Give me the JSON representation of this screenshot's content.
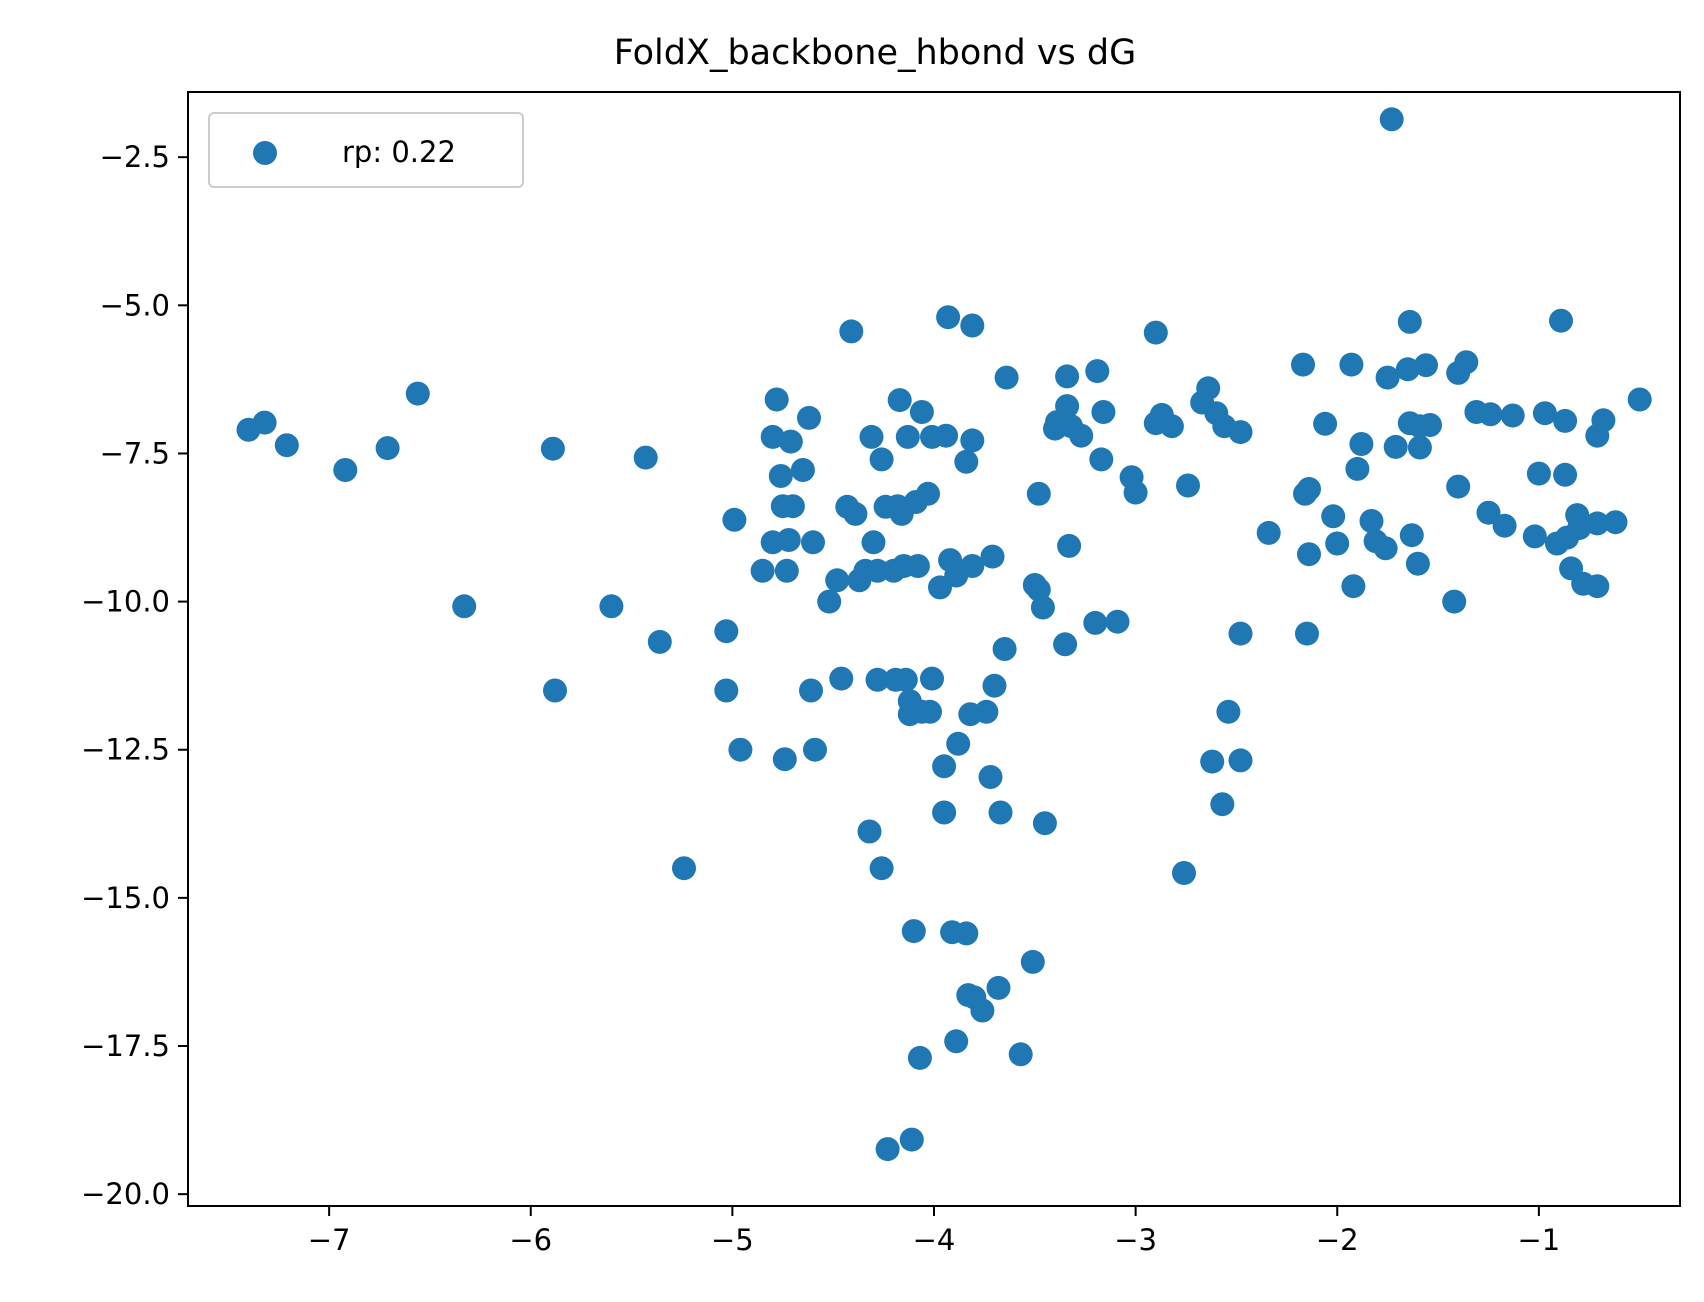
{
  "chart_data": {
    "type": "scatter",
    "title": "FoldX_backbone_hbond vs dG",
    "xlabel": "",
    "ylabel": "",
    "xlim": [
      -7.7,
      -0.3
    ],
    "ylim": [
      -20.2,
      -1.4
    ],
    "x_ticks": [
      -7,
      -6,
      -5,
      -4,
      -3,
      -2,
      -1
    ],
    "y_ticks": [
      -2.5,
      -5.0,
      -7.5,
      -10.0,
      -12.5,
      -15.0,
      -17.5,
      -20.0
    ],
    "x_tick_labels": [
      "−7",
      "−6",
      "−5",
      "−4",
      "−3",
      "−2",
      "−1"
    ],
    "y_tick_labels": [
      "−2.5",
      "−5.0",
      "−7.5",
      "−10.0",
      "−12.5",
      "−15.0",
      "−17.5",
      "−20.0"
    ],
    "grid": false,
    "legend": {
      "placement": "top-left",
      "entries": [
        "rp: 0.22"
      ]
    },
    "color": "#1f77b4",
    "series": [
      {
        "name": "rp: 0.22",
        "points": [
          [
            -7.4,
            -7.1
          ],
          [
            -7.32,
            -6.98
          ],
          [
            -7.21,
            -7.36
          ],
          [
            -6.92,
            -7.78
          ],
          [
            -6.71,
            -7.41
          ],
          [
            -6.56,
            -6.49
          ],
          [
            -6.33,
            -10.08
          ],
          [
            -5.89,
            -7.42
          ],
          [
            -5.88,
            -11.5
          ],
          [
            -5.6,
            -10.08
          ],
          [
            -5.43,
            -7.57
          ],
          [
            -5.36,
            -10.68
          ],
          [
            -5.24,
            -14.5
          ],
          [
            -5.03,
            -10.5
          ],
          [
            -5.03,
            -11.5
          ],
          [
            -4.99,
            -8.62
          ],
          [
            -4.96,
            -12.5
          ],
          [
            -4.85,
            -9.48
          ],
          [
            -4.8,
            -7.22
          ],
          [
            -4.8,
            -9.0
          ],
          [
            -4.78,
            -6.59
          ],
          [
            -4.76,
            -7.88
          ],
          [
            -4.75,
            -8.39
          ],
          [
            -4.74,
            -12.66
          ],
          [
            -4.73,
            -9.48
          ],
          [
            -4.72,
            -8.96
          ],
          [
            -4.71,
            -7.3
          ],
          [
            -4.7,
            -8.39
          ],
          [
            -4.65,
            -7.78
          ],
          [
            -4.62,
            -6.9
          ],
          [
            -4.61,
            -11.5
          ],
          [
            -4.6,
            -9.0
          ],
          [
            -4.59,
            -12.5
          ],
          [
            -4.52,
            -10.0
          ],
          [
            -4.48,
            -9.64
          ],
          [
            -4.46,
            -11.3
          ],
          [
            -4.43,
            -8.4
          ],
          [
            -4.41,
            -5.44
          ],
          [
            -4.39,
            -8.52
          ],
          [
            -4.37,
            -9.64
          ],
          [
            -4.34,
            -9.48
          ],
          [
            -4.32,
            -13.88
          ],
          [
            -4.31,
            -7.22
          ],
          [
            -4.3,
            -9.0
          ],
          [
            -4.28,
            -11.32
          ],
          [
            -4.28,
            -9.48
          ],
          [
            -4.26,
            -14.5
          ],
          [
            -4.26,
            -7.6
          ],
          [
            -4.24,
            -8.4
          ],
          [
            -4.23,
            -19.24
          ],
          [
            -4.2,
            -9.48
          ],
          [
            -4.19,
            -11.32
          ],
          [
            -4.18,
            -8.39
          ],
          [
            -4.17,
            -6.6
          ],
          [
            -4.16,
            -8.52
          ],
          [
            -4.15,
            -9.4
          ],
          [
            -4.14,
            -11.32
          ],
          [
            -4.13,
            -7.22
          ],
          [
            -4.12,
            -11.68
          ],
          [
            -4.12,
            -11.9
          ],
          [
            -4.11,
            -19.08
          ],
          [
            -4.1,
            -15.56
          ],
          [
            -4.09,
            -8.32
          ],
          [
            -4.08,
            -9.4
          ],
          [
            -4.07,
            -17.7
          ],
          [
            -4.06,
            -6.8
          ],
          [
            -4.06,
            -11.86
          ],
          [
            -4.03,
            -8.18
          ],
          [
            -4.02,
            -11.86
          ],
          [
            -4.01,
            -7.22
          ],
          [
            -4.01,
            -11.3
          ],
          [
            -3.97,
            -9.76
          ],
          [
            -3.95,
            -13.56
          ],
          [
            -3.95,
            -12.78
          ],
          [
            -3.94,
            -7.2
          ],
          [
            -3.93,
            -5.2
          ],
          [
            -3.92,
            -9.3
          ],
          [
            -3.91,
            -15.58
          ],
          [
            -3.89,
            -17.42
          ],
          [
            -3.89,
            -9.56
          ],
          [
            -3.88,
            -12.4
          ],
          [
            -3.84,
            -15.6
          ],
          [
            -3.84,
            -7.64
          ],
          [
            -3.83,
            -16.64
          ],
          [
            -3.82,
            -11.9
          ],
          [
            -3.81,
            -5.34
          ],
          [
            -3.81,
            -7.28
          ],
          [
            -3.81,
            -9.4
          ],
          [
            -3.8,
            -16.68
          ],
          [
            -3.76,
            -16.9
          ],
          [
            -3.74,
            -11.86
          ],
          [
            -3.72,
            -12.96
          ],
          [
            -3.71,
            -9.24
          ],
          [
            -3.7,
            -11.42
          ],
          [
            -3.68,
            -16.52
          ],
          [
            -3.67,
            -13.56
          ],
          [
            -3.65,
            -10.8
          ],
          [
            -3.64,
            -6.22
          ],
          [
            -3.57,
            -17.64
          ],
          [
            -3.51,
            -16.08
          ],
          [
            -3.5,
            -9.72
          ],
          [
            -3.48,
            -8.18
          ],
          [
            -3.48,
            -9.8
          ],
          [
            -3.46,
            -10.1
          ],
          [
            -3.45,
            -13.74
          ],
          [
            -3.4,
            -7.08
          ],
          [
            -3.39,
            -6.97
          ],
          [
            -3.35,
            -10.72
          ],
          [
            -3.34,
            -6.2
          ],
          [
            -3.34,
            -6.7
          ],
          [
            -3.33,
            -9.06
          ],
          [
            -3.32,
            -7.04
          ],
          [
            -3.27,
            -7.2
          ],
          [
            -3.2,
            -10.36
          ],
          [
            -3.19,
            -6.11
          ],
          [
            -3.17,
            -7.6
          ],
          [
            -3.16,
            -6.8
          ],
          [
            -3.09,
            -10.34
          ],
          [
            -3.02,
            -7.9
          ],
          [
            -3.0,
            -8.16
          ],
          [
            -2.9,
            -6.99
          ],
          [
            -2.9,
            -5.46
          ],
          [
            -2.87,
            -6.85
          ],
          [
            -2.82,
            -7.04
          ],
          [
            -2.76,
            -14.58
          ],
          [
            -2.74,
            -8.04
          ],
          [
            -2.67,
            -6.64
          ],
          [
            -2.64,
            -6.4
          ],
          [
            -2.62,
            -12.7
          ],
          [
            -2.6,
            -6.82
          ],
          [
            -2.57,
            -13.42
          ],
          [
            -2.56,
            -7.04
          ],
          [
            -2.54,
            -11.86
          ],
          [
            -2.48,
            -7.14
          ],
          [
            -2.48,
            -10.54
          ],
          [
            -2.48,
            -12.68
          ],
          [
            -2.34,
            -8.84
          ],
          [
            -2.17,
            -6.0
          ],
          [
            -2.16,
            -8.18
          ],
          [
            -2.15,
            -10.54
          ],
          [
            -2.14,
            -8.1
          ],
          [
            -2.14,
            -9.2
          ],
          [
            -2.06,
            -7.0
          ],
          [
            -2.02,
            -8.56
          ],
          [
            -2.0,
            -9.02
          ],
          [
            -1.93,
            -6.0
          ],
          [
            -1.92,
            -9.74
          ],
          [
            -1.9,
            -7.76
          ],
          [
            -1.88,
            -7.34
          ],
          [
            -1.83,
            -8.64
          ],
          [
            -1.81,
            -8.98
          ],
          [
            -1.76,
            -9.1
          ],
          [
            -1.75,
            -6.22
          ],
          [
            -1.73,
            -1.86
          ],
          [
            -1.71,
            -7.39
          ],
          [
            -1.65,
            -6.08
          ],
          [
            -1.64,
            -5.28
          ],
          [
            -1.64,
            -6.99
          ],
          [
            -1.63,
            -8.88
          ],
          [
            -1.6,
            -9.36
          ],
          [
            -1.59,
            -7.4
          ],
          [
            -1.59,
            -7.04
          ],
          [
            -1.56,
            -6.01
          ],
          [
            -1.54,
            -7.02
          ],
          [
            -1.42,
            -10.0
          ],
          [
            -1.4,
            -8.06
          ],
          [
            -1.4,
            -6.14
          ],
          [
            -1.36,
            -5.96
          ],
          [
            -1.31,
            -6.8
          ],
          [
            -1.25,
            -8.5
          ],
          [
            -1.24,
            -6.84
          ],
          [
            -1.17,
            -8.72
          ],
          [
            -1.13,
            -6.86
          ],
          [
            -1.02,
            -8.9
          ],
          [
            -1.0,
            -7.84
          ],
          [
            -0.97,
            -6.82
          ],
          [
            -0.91,
            -9.02
          ],
          [
            -0.89,
            -5.26
          ],
          [
            -0.87,
            -6.95
          ],
          [
            -0.87,
            -7.86
          ],
          [
            -0.86,
            -8.92
          ],
          [
            -0.84,
            -9.44
          ],
          [
            -0.81,
            -8.54
          ],
          [
            -0.8,
            -8.76
          ],
          [
            -0.78,
            -9.7
          ],
          [
            -0.71,
            -9.74
          ],
          [
            -0.71,
            -8.68
          ],
          [
            -0.71,
            -7.2
          ],
          [
            -0.68,
            -6.94
          ],
          [
            -0.62,
            -8.66
          ],
          [
            -0.5,
            -6.59
          ]
        ]
      }
    ]
  }
}
